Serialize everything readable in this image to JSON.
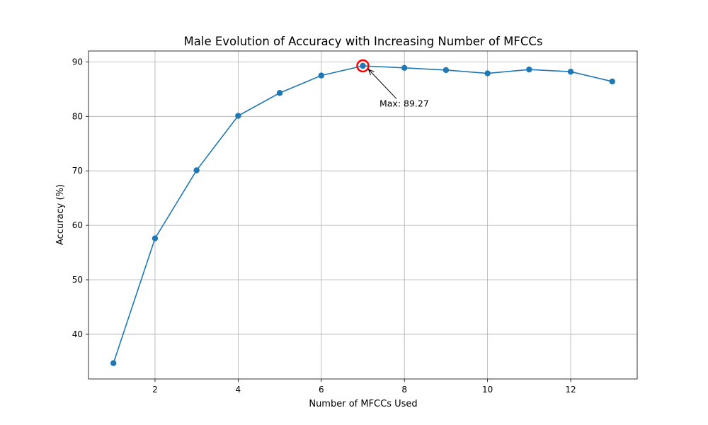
{
  "chart_data": {
    "type": "line",
    "title": "Male Evolution of Accuracy with Increasing Number of MFCCs",
    "xlabel": "Number of MFCCs Used",
    "ylabel": "Accuracy (%)",
    "xlim": [
      0.4,
      13.6
    ],
    "ylim": [
      31.8,
      92.0
    ],
    "xticks": [
      2,
      4,
      6,
      8,
      10,
      12
    ],
    "yticks": [
      40,
      50,
      60,
      70,
      80,
      90
    ],
    "grid": true,
    "series": [
      {
        "x": [
          1,
          2,
          3,
          4,
          5,
          6,
          7,
          8,
          9,
          10,
          11,
          12,
          13
        ],
        "values": [
          34.7,
          57.6,
          70.1,
          80.1,
          84.3,
          87.5,
          89.27,
          88.9,
          88.5,
          87.9,
          88.6,
          88.2,
          86.4
        ],
        "color": "#1f77b4"
      }
    ],
    "annotation": {
      "text": "Max: 89.27",
      "x": 7,
      "y": 89.27,
      "text_x": 7.4,
      "text_y": 81.8,
      "highlight_color": "#ff0000"
    }
  }
}
